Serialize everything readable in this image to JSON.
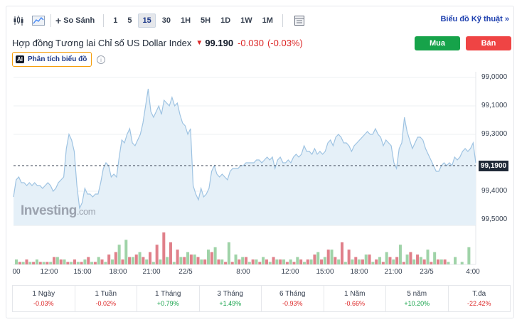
{
  "toolbar": {
    "compare_label": "So Sánh",
    "timeframes": [
      "1",
      "5",
      "15",
      "30",
      "1H",
      "5H",
      "1D",
      "1W",
      "1M"
    ],
    "active_timeframe": "15",
    "technical_chart_link": "Biểu đồ Kỹ thuật »"
  },
  "instrument": {
    "name": "Hợp đồng Tương lai Chỉ số US Dollar Index",
    "price": "99.190",
    "change": "-0.030",
    "change_pct": "(-0.03%)",
    "direction_icon": "down-arrow-icon"
  },
  "actions": {
    "buy_label": "Mua",
    "sell_label": "Bán",
    "ai_badge": "AI",
    "ai_label": "Phân tích biểu đồ",
    "info_glyph": "i"
  },
  "colors": {
    "buy": "#16a34a",
    "sell": "#ef4444",
    "line": "#9ec3e2",
    "area": "#e5f0f8",
    "volume_up": "#9fd3a8",
    "volume_down": "#e0808a"
  },
  "chart": {
    "watermark": "Investing",
    "watermark_suffix": ".com",
    "current_tag": "99,1900",
    "y_ticks": [
      "99,5000",
      "99,4000",
      "99,3000",
      "99,1000",
      "99,0000"
    ],
    "x_ticks": [
      "00",
      "12:00",
      "15:00",
      "18:00",
      "21:00",
      "22/5",
      "8:00",
      "12:00",
      "15:00",
      "18:00",
      "21:00",
      "23/5",
      "4:00"
    ]
  },
  "chart_data": {
    "type": "area",
    "ylim": [
      98.98,
      99.52
    ],
    "current": 99.19,
    "y_ticks": [
      99.0,
      99.1,
      99.3,
      99.4,
      99.5
    ],
    "series": [
      {
        "values": [
          99.08,
          99.14,
          99.15,
          99.13,
          99.13,
          99.12,
          99.13,
          99.12,
          99.13,
          99.12,
          99.12,
          99.11,
          99.12,
          99.13,
          99.12,
          99.1,
          99.11,
          99.13,
          99.14,
          99.15,
          99.25,
          99.3,
          99.28,
          99.24,
          99.12,
          99.04,
          99.06,
          99.11,
          99.09,
          99.09,
          99.08,
          99.09,
          99.09,
          99.13,
          99.18,
          99.2,
          99.19,
          99.15,
          99.16,
          99.15,
          99.22,
          99.28,
          99.27,
          99.3,
          99.32,
          99.27,
          99.26,
          99.28,
          99.3,
          99.34,
          99.4,
          99.46,
          99.38,
          99.36,
          99.38,
          99.4,
          99.37,
          99.42,
          99.41,
          99.4,
          99.43,
          99.4,
          99.41,
          99.37,
          99.34,
          99.33,
          99.3,
          99.32,
          99.12,
          99.09,
          99.07,
          99.11,
          99.08,
          99.09,
          99.11,
          99.17,
          99.19,
          99.16,
          99.15,
          99.16,
          99.15,
          99.14,
          99.17,
          99.18,
          99.18,
          99.18,
          99.19,
          99.19,
          99.2,
          99.2,
          99.2,
          99.2,
          99.21,
          99.21,
          99.2,
          99.21,
          99.22,
          99.21,
          99.22,
          99.18,
          99.21,
          99.22,
          99.2,
          99.2,
          99.21,
          99.2,
          99.22,
          99.23,
          99.22,
          99.23,
          99.26,
          99.24,
          99.24,
          99.23,
          99.25,
          99.23,
          99.24,
          99.23,
          99.24,
          99.27,
          99.28,
          99.26,
          99.29,
          99.3,
          99.29,
          99.27,
          99.27,
          99.26,
          99.24,
          99.26,
          99.27,
          99.28,
          99.29,
          99.3,
          99.31,
          99.3,
          99.3,
          99.32,
          99.3,
          99.29,
          99.26,
          99.28,
          99.27,
          99.26,
          99.2,
          99.18,
          99.25,
          99.27,
          99.36,
          99.31,
          99.28,
          99.25,
          99.27,
          99.29,
          99.29,
          99.28,
          99.25,
          99.23,
          99.21,
          99.19,
          99.17,
          99.17,
          99.19,
          99.2,
          99.19,
          99.2,
          99.19,
          99.22,
          99.21,
          99.22,
          99.24,
          99.25,
          99.24,
          99.25,
          99.27,
          99.2
        ]
      },
      {
        "volume_up": [
          2,
          1,
          1,
          2,
          1,
          1,
          3,
          2,
          1,
          1,
          2,
          1,
          3,
          1,
          2,
          8,
          10,
          3,
          5,
          2,
          1,
          2,
          3,
          1,
          3,
          5,
          4,
          2,
          6,
          7,
          2,
          9,
          4,
          3,
          1,
          2,
          3,
          1,
          2,
          2,
          2,
          3,
          1,
          2,
          5,
          3,
          6,
          2,
          1,
          2,
          2,
          4,
          1,
          3,
          5,
          2,
          8,
          4,
          2,
          3,
          6,
          5,
          2,
          1,
          3,
          1,
          7
        ],
        "volume_down": [
          1,
          2,
          1,
          1,
          1,
          3,
          2,
          1,
          2,
          1,
          3,
          1,
          2,
          4,
          5,
          2,
          3,
          4,
          3,
          5,
          8,
          13,
          9,
          6,
          3,
          4,
          3,
          2,
          5,
          2,
          1,
          1,
          2,
          3,
          2,
          1,
          2,
          3,
          2,
          1,
          1,
          2,
          2,
          4,
          2,
          6,
          3,
          9,
          6,
          3,
          2,
          4,
          2,
          1,
          3,
          3,
          1,
          5,
          4,
          2,
          1,
          2,
          2
        ]
      }
    ]
  },
  "performance": [
    {
      "label": "1 Ngày",
      "value": "-0.03%",
      "trend": "neg"
    },
    {
      "label": "1 Tuần",
      "value": "-0.02%",
      "trend": "neg"
    },
    {
      "label": "1 Tháng",
      "value": "+0.79%",
      "trend": "pos"
    },
    {
      "label": "3 Tháng",
      "value": "+1.49%",
      "trend": "pos"
    },
    {
      "label": "6 Tháng",
      "value": "-0.93%",
      "trend": "neg"
    },
    {
      "label": "1 Năm",
      "value": "-0.66%",
      "trend": "neg"
    },
    {
      "label": "5 năm",
      "value": "+10.20%",
      "trend": "pos"
    },
    {
      "label": "T.đa",
      "value": "-22.42%",
      "trend": "neg"
    }
  ]
}
